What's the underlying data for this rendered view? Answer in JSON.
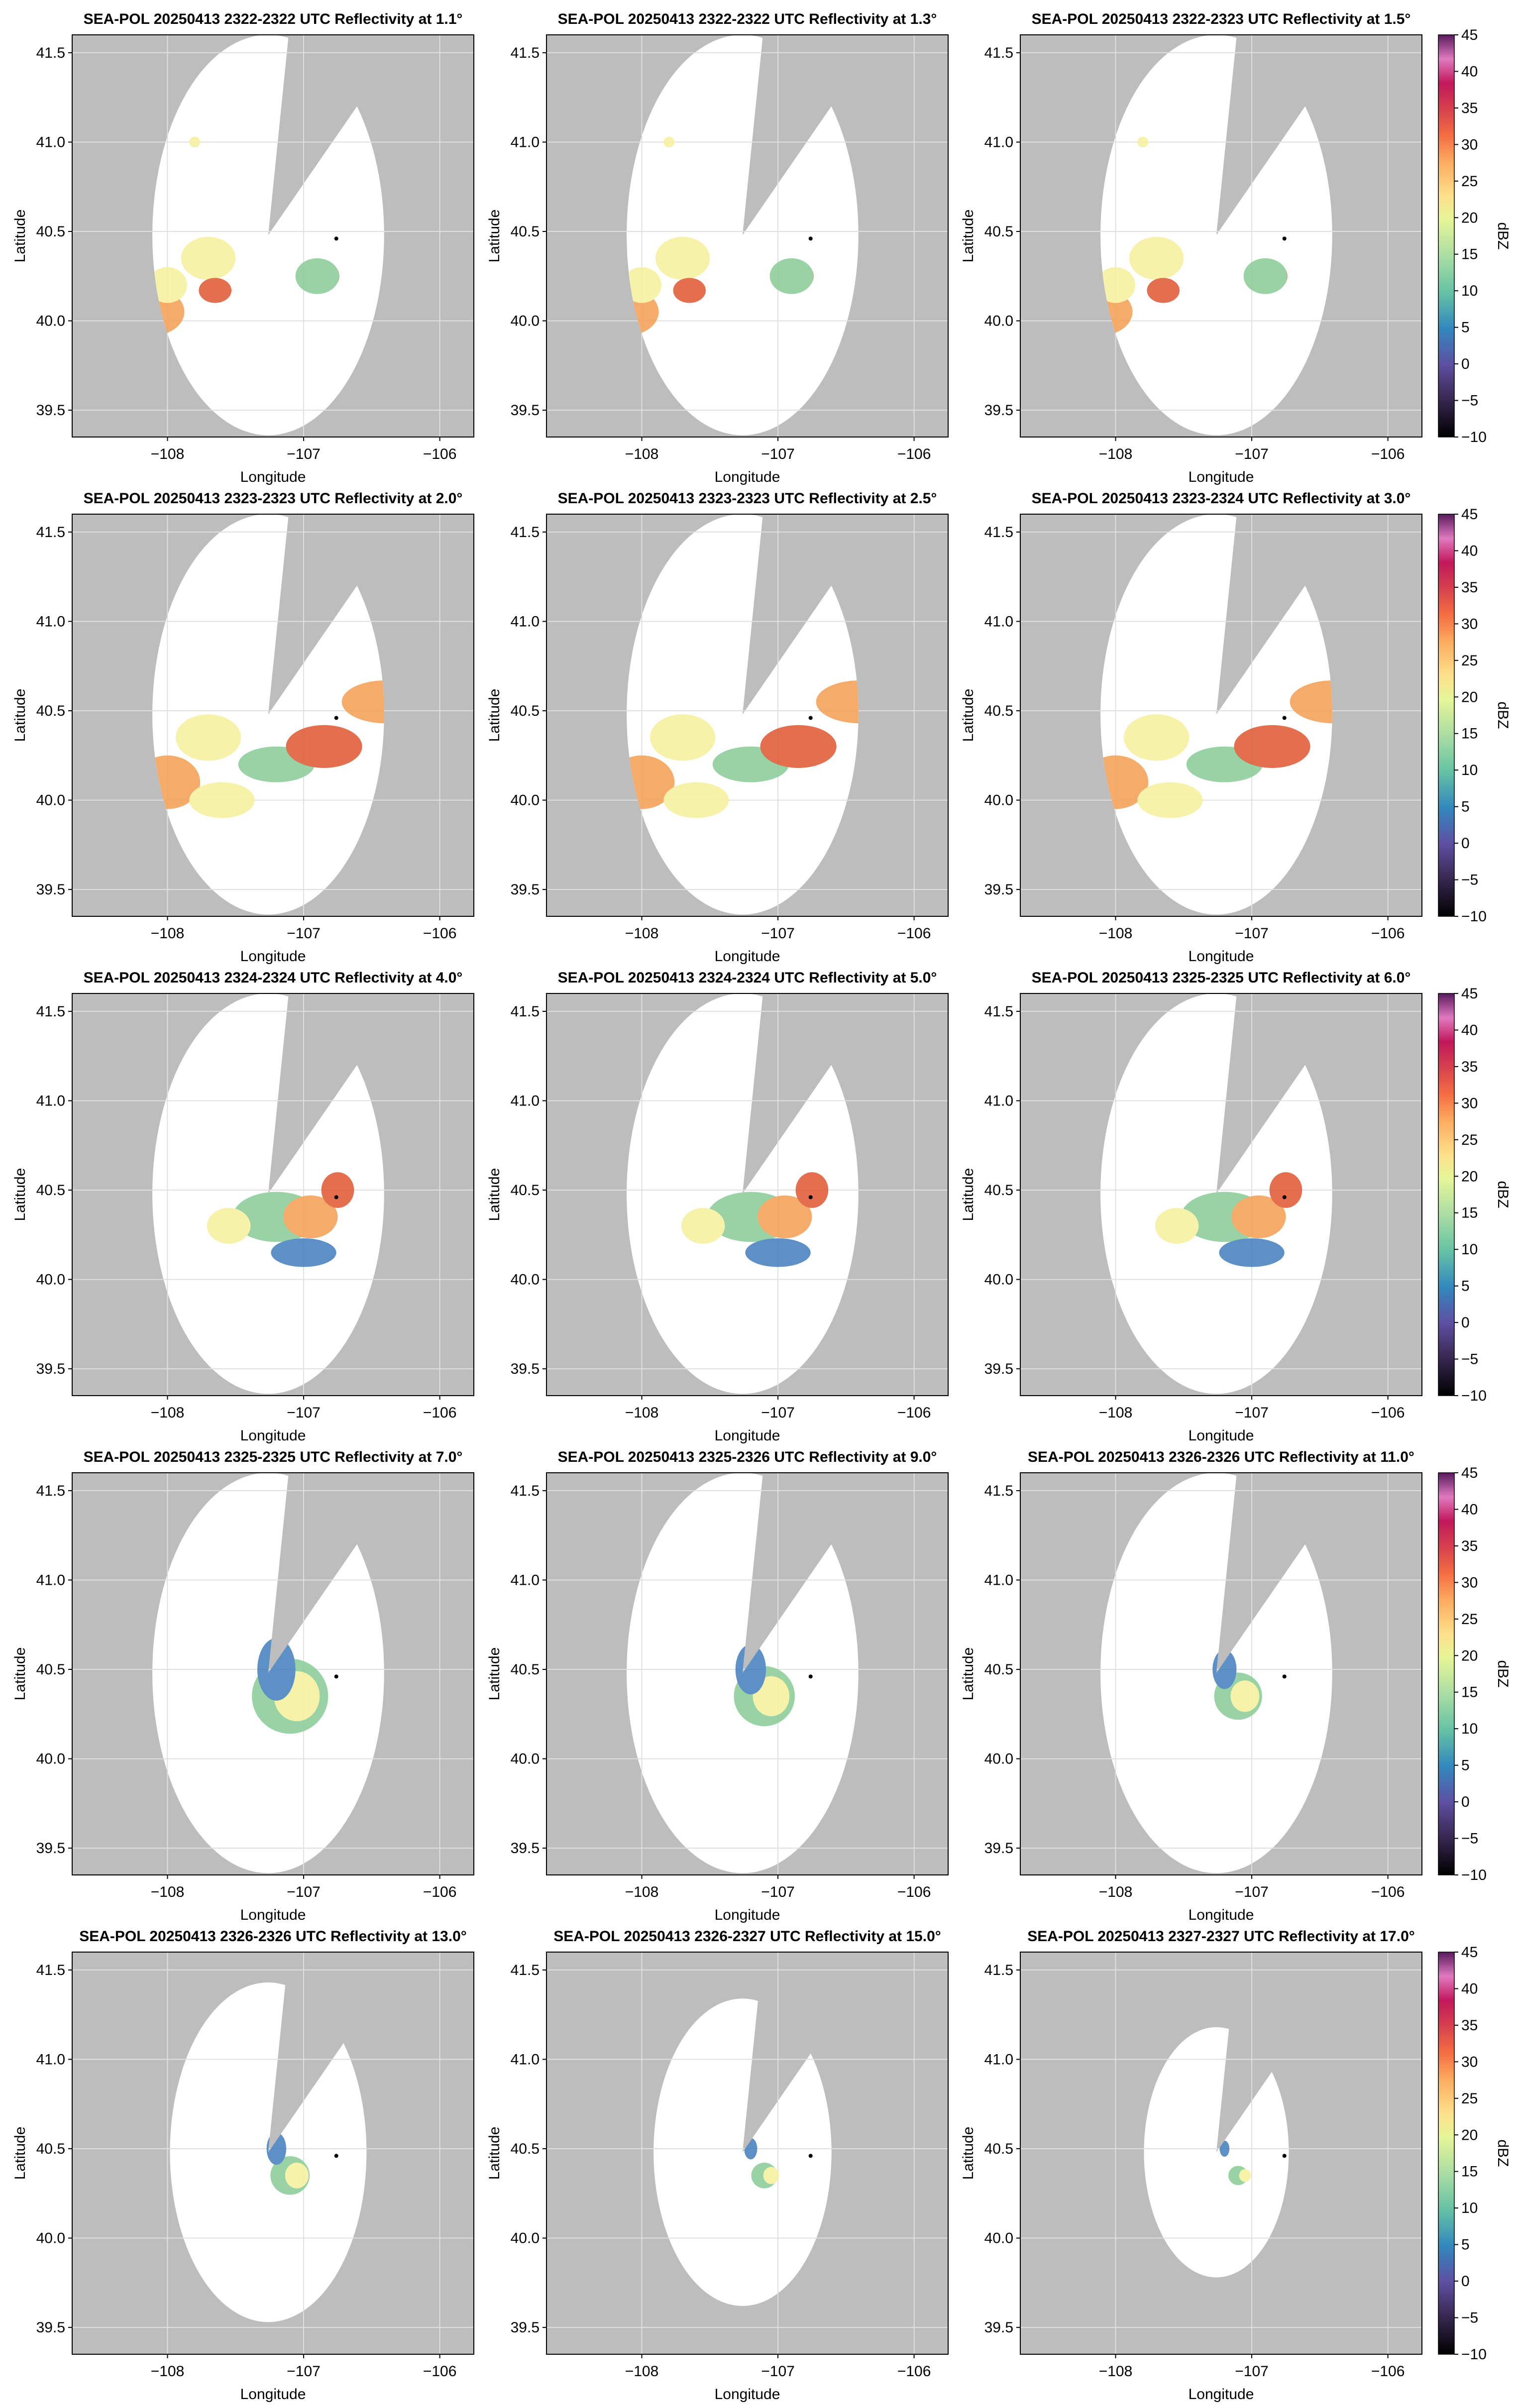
{
  "colors": {
    "background_mask": "#bdbdbd",
    "coverage": "#ffffff",
    "grid": "#e0e0e0",
    "radar_marker": "#000000"
  },
  "colorbar": {
    "label": "dBZ",
    "ticks": [
      "45",
      "40",
      "35",
      "30",
      "25",
      "20",
      "15",
      "10",
      "5",
      "0",
      "−5",
      "−10"
    ],
    "range": [
      -10,
      45
    ],
    "colormap": "spectral-like (black-purple-blue-green-yellow-orange-red-pink)"
  },
  "chart_data": [
    {
      "type": "heatmap",
      "title": "SEA-POL 20250413 2322-2322 UTC Reflectivity at 1.1°",
      "xlabel": "Longitude",
      "ylabel": "Latitude",
      "xticks": [
        "−108",
        "−107",
        "−106"
      ],
      "yticks": [
        "41.5",
        "41.0",
        "40.5",
        "40.0",
        "39.5"
      ],
      "xlim": [
        -108.7,
        -105.75
      ],
      "ylim": [
        39.35,
        41.6
      ],
      "elevation_deg": 1.1
    },
    {
      "type": "heatmap",
      "title": "SEA-POL 20250413 2322-2322 UTC Reflectivity at 1.3°",
      "xlabel": "Longitude",
      "ylabel": "Latitude",
      "xticks": [
        "−108",
        "−107",
        "−106"
      ],
      "yticks": [
        "41.5",
        "41.0",
        "40.5",
        "40.0",
        "39.5"
      ],
      "xlim": [
        -108.7,
        -105.75
      ],
      "ylim": [
        39.35,
        41.6
      ],
      "elevation_deg": 1.3
    },
    {
      "type": "heatmap",
      "title": "SEA-POL 20250413 2322-2323 UTC Reflectivity at 1.5°",
      "xlabel": "Longitude",
      "ylabel": "Latitude",
      "xticks": [
        "−108",
        "−107",
        "−106"
      ],
      "yticks": [
        "41.5",
        "41.0",
        "40.5",
        "40.0",
        "39.5"
      ],
      "xlim": [
        -108.7,
        -105.75
      ],
      "ylim": [
        39.35,
        41.6
      ],
      "elevation_deg": 1.5
    },
    {
      "type": "heatmap",
      "title": "SEA-POL 20250413 2323-2323 UTC Reflectivity at 2.0°",
      "xlabel": "Longitude",
      "ylabel": "Latitude",
      "xticks": [
        "−108",
        "−107",
        "−106"
      ],
      "yticks": [
        "41.5",
        "41.0",
        "40.5",
        "40.0",
        "39.5"
      ],
      "xlim": [
        -108.7,
        -105.75
      ],
      "ylim": [
        39.35,
        41.6
      ],
      "elevation_deg": 2.0
    },
    {
      "type": "heatmap",
      "title": "SEA-POL 20250413 2323-2323 UTC Reflectivity at 2.5°",
      "xlabel": "Longitude",
      "ylabel": "Latitude",
      "xticks": [
        "−108",
        "−107",
        "−106"
      ],
      "yticks": [
        "41.5",
        "41.0",
        "40.5",
        "40.0",
        "39.5"
      ],
      "xlim": [
        -108.7,
        -105.75
      ],
      "ylim": [
        39.35,
        41.6
      ],
      "elevation_deg": 2.5
    },
    {
      "type": "heatmap",
      "title": "SEA-POL 20250413 2323-2324 UTC Reflectivity at 3.0°",
      "xlabel": "Longitude",
      "ylabel": "Latitude",
      "xticks": [
        "−108",
        "−107",
        "−106"
      ],
      "yticks": [
        "41.5",
        "41.0",
        "40.5",
        "40.0",
        "39.5"
      ],
      "xlim": [
        -108.7,
        -105.75
      ],
      "ylim": [
        39.35,
        41.6
      ],
      "elevation_deg": 3.0
    },
    {
      "type": "heatmap",
      "title": "SEA-POL 20250413 2324-2324 UTC Reflectivity at 4.0°",
      "xlabel": "Longitude",
      "ylabel": "Latitude",
      "xticks": [
        "−108",
        "−107",
        "−106"
      ],
      "yticks": [
        "41.5",
        "41.0",
        "40.5",
        "40.0",
        "39.5"
      ],
      "xlim": [
        -108.7,
        -105.75
      ],
      "ylim": [
        39.35,
        41.6
      ],
      "elevation_deg": 4.0
    },
    {
      "type": "heatmap",
      "title": "SEA-POL 20250413 2324-2324 UTC Reflectivity at 5.0°",
      "xlabel": "Longitude",
      "ylabel": "Latitude",
      "xticks": [
        "−108",
        "−107",
        "−106"
      ],
      "yticks": [
        "41.5",
        "41.0",
        "40.5",
        "40.0",
        "39.5"
      ],
      "xlim": [
        -108.7,
        -105.75
      ],
      "ylim": [
        39.35,
        41.6
      ],
      "elevation_deg": 5.0
    },
    {
      "type": "heatmap",
      "title": "SEA-POL 20250413 2325-2325 UTC Reflectivity at 6.0°",
      "xlabel": "Longitude",
      "ylabel": "Latitude",
      "xticks": [
        "−108",
        "−107",
        "−106"
      ],
      "yticks": [
        "41.5",
        "41.0",
        "40.5",
        "40.0",
        "39.5"
      ],
      "xlim": [
        -108.7,
        -105.75
      ],
      "ylim": [
        39.35,
        41.6
      ],
      "elevation_deg": 6.0
    },
    {
      "type": "heatmap",
      "title": "SEA-POL 20250413 2325-2325 UTC Reflectivity at 7.0°",
      "xlabel": "Longitude",
      "ylabel": "Latitude",
      "xticks": [
        "−108",
        "−107",
        "−106"
      ],
      "yticks": [
        "41.5",
        "41.0",
        "40.5",
        "40.0",
        "39.5"
      ],
      "xlim": [
        -108.7,
        -105.75
      ],
      "ylim": [
        39.35,
        41.6
      ],
      "elevation_deg": 7.0
    },
    {
      "type": "heatmap",
      "title": "SEA-POL 20250413 2325-2326 UTC Reflectivity at 9.0°",
      "xlabel": "Longitude",
      "ylabel": "Latitude",
      "xticks": [
        "−108",
        "−107",
        "−106"
      ],
      "yticks": [
        "41.5",
        "41.0",
        "40.5",
        "40.0",
        "39.5"
      ],
      "xlim": [
        -108.7,
        -105.75
      ],
      "ylim": [
        39.35,
        41.6
      ],
      "elevation_deg": 9.0
    },
    {
      "type": "heatmap",
      "title": "SEA-POL 20250413 2326-2326 UTC Reflectivity at 11.0°",
      "xlabel": "Longitude",
      "ylabel": "Latitude",
      "xticks": [
        "−108",
        "−107",
        "−106"
      ],
      "yticks": [
        "41.5",
        "41.0",
        "40.5",
        "40.0",
        "39.5"
      ],
      "xlim": [
        -108.7,
        -105.75
      ],
      "ylim": [
        39.35,
        41.6
      ],
      "elevation_deg": 11.0
    },
    {
      "type": "heatmap",
      "title": "SEA-POL 20250413 2326-2326 UTC Reflectivity at 13.0°",
      "xlabel": "Longitude",
      "ylabel": "Latitude",
      "xticks": [
        "−108",
        "−107",
        "−106"
      ],
      "yticks": [
        "41.5",
        "41.0",
        "40.5",
        "40.0",
        "39.5"
      ],
      "xlim": [
        -108.7,
        -105.75
      ],
      "ylim": [
        39.35,
        41.6
      ],
      "elevation_deg": 13.0
    },
    {
      "type": "heatmap",
      "title": "SEA-POL 20250413 2326-2327 UTC Reflectivity at 15.0°",
      "xlabel": "Longitude",
      "ylabel": "Latitude",
      "xticks": [
        "−108",
        "−107",
        "−106"
      ],
      "yticks": [
        "41.5",
        "41.0",
        "40.5",
        "40.0",
        "39.5"
      ],
      "xlim": [
        -108.7,
        -105.75
      ],
      "ylim": [
        39.35,
        41.6
      ],
      "elevation_deg": 15.0
    },
    {
      "type": "heatmap",
      "title": "SEA-POL 20250413 2327-2327 UTC Reflectivity at 17.0°",
      "xlabel": "Longitude",
      "ylabel": "Latitude",
      "xticks": [
        "−108",
        "−107",
        "−106"
      ],
      "yticks": [
        "41.5",
        "41.0",
        "40.5",
        "40.0",
        "39.5"
      ],
      "xlim": [
        -108.7,
        -105.75
      ],
      "ylim": [
        39.35,
        41.6
      ],
      "elevation_deg": 17.0
    }
  ]
}
